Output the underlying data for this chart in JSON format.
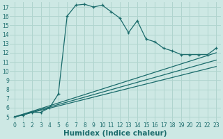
{
  "xlabel": "Humidex (Indice chaleur)",
  "bg_color": "#cde8e4",
  "grid_color": "#b0d4ce",
  "line_color": "#1a6b6b",
  "xlim": [
    -0.5,
    23.5
  ],
  "ylim": [
    4.5,
    17.5
  ],
  "yticks": [
    5,
    6,
    7,
    8,
    9,
    10,
    11,
    12,
    13,
    14,
    15,
    16,
    17
  ],
  "xticks": [
    0,
    1,
    2,
    3,
    4,
    5,
    6,
    7,
    8,
    9,
    10,
    11,
    12,
    13,
    14,
    15,
    16,
    17,
    18,
    19,
    20,
    21,
    22,
    23
  ],
  "main_x": [
    0,
    1,
    2,
    3,
    4,
    5,
    6,
    7,
    8,
    9,
    10,
    11,
    12,
    13,
    14,
    15,
    16,
    17,
    18,
    19,
    20,
    21,
    22,
    23
  ],
  "main_y": [
    5,
    5.2,
    5.5,
    5.5,
    6.0,
    7.5,
    16.0,
    17.2,
    17.3,
    17.0,
    17.2,
    16.5,
    15.8,
    14.2,
    15.5,
    13.5,
    13.2,
    12.5,
    12.2,
    11.8,
    11.8,
    11.8,
    11.8,
    12.5
  ],
  "line1_x": [
    0,
    23
  ],
  "line1_y": [
    5,
    12.0
  ],
  "line2_x": [
    0,
    23
  ],
  "line2_y": [
    5,
    11.2
  ],
  "line3_x": [
    0,
    23
  ],
  "line3_y": [
    5,
    10.5
  ],
  "tick_fontsize": 5.5,
  "xlabel_fontsize": 7.5
}
